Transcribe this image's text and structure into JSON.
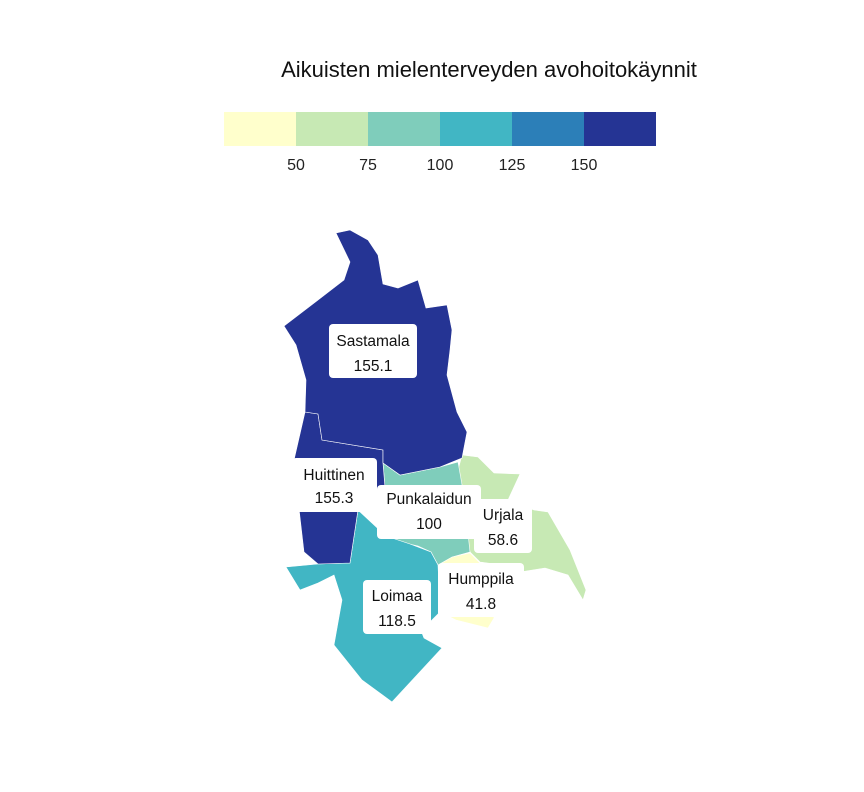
{
  "title": "Aikuisten mielenterveyden avohoitokäynnit",
  "legend": {
    "breaks": [
      50,
      75,
      100,
      125,
      150
    ],
    "tick_labels": [
      "50",
      "75",
      "100",
      "125",
      "150"
    ],
    "colors": [
      "#ffffcc",
      "#c7e9b4",
      "#7fcdbb",
      "#41b6c4",
      "#2c7fb8",
      "#253494"
    ]
  },
  "regions": [
    {
      "name": "Sastamala",
      "value_label": "155.1",
      "value": 155.1,
      "color": "#253494"
    },
    {
      "name": "Huittinen",
      "value_label": "155.3",
      "value": 155.3,
      "color": "#253494"
    },
    {
      "name": "Punkalaidun",
      "value_label": "100",
      "value": 100,
      "color": "#7fcdbb"
    },
    {
      "name": "Urjala",
      "value_label": "58.6",
      "value": 58.6,
      "color": "#c7e9b4"
    },
    {
      "name": "Humppila",
      "value_label": "41.8",
      "value": 41.8,
      "color": "#ffffcc"
    },
    {
      "name": "Loimaa",
      "value_label": "118.5",
      "value": 118.5,
      "color": "#41b6c4"
    }
  ]
}
